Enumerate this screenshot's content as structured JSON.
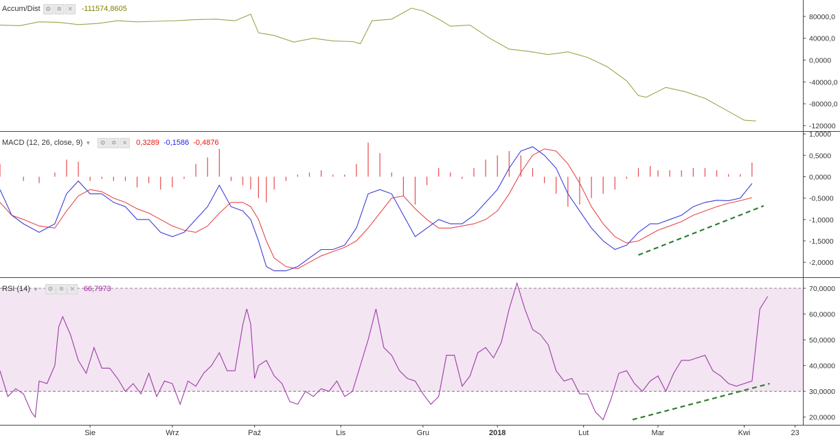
{
  "accum": {
    "name": "Accum/Dist",
    "value": "-111574,8605",
    "value_color": "#808000",
    "line_color": "#9aa44a",
    "yticks": [
      {
        "v": 80000,
        "label": "80000,0"
      },
      {
        "v": 40000,
        "label": "40000,0"
      },
      {
        "v": 0,
        "label": "0,0000"
      },
      {
        "v": -40000,
        "label": "-40000,0"
      },
      {
        "v": -80000,
        "label": "-80000,0"
      },
      {
        "v": -120000,
        "label": "-120000"
      }
    ]
  },
  "macd": {
    "name": "MACD (12, 26, close, 9)",
    "values": [
      {
        "text": "0,3289",
        "color": "#e8140c"
      },
      {
        "text": "-0,1586",
        "color": "#2020ee"
      },
      {
        "text": "-0,4876",
        "color": "#e8140c"
      }
    ],
    "macd_color": "#3b3bd9",
    "signal_color": "#e8464a",
    "hist_color": "#e8464a",
    "yticks": [
      {
        "v": 1,
        "label": "1,0000"
      },
      {
        "v": 0.5,
        "label": "0,5000"
      },
      {
        "v": 0,
        "label": "0,0000"
      },
      {
        "v": -0.5,
        "label": "-0,5000"
      },
      {
        "v": -1,
        "label": "-1,0000"
      },
      {
        "v": -1.5,
        "label": "-1,5000"
      },
      {
        "v": -2,
        "label": "-2,0000"
      }
    ]
  },
  "rsi": {
    "name": "RSI (14)",
    "value": "66,7973",
    "value_color": "#9b27a0",
    "line_color": "#9b3aa6",
    "band_color": "#f3e5f2",
    "band_upper": 70,
    "band_lower": 30,
    "yticks": [
      {
        "v": 70,
        "label": "70,0000"
      },
      {
        "v": 60,
        "label": "60,0000"
      },
      {
        "v": 50,
        "label": "50,0000"
      },
      {
        "v": 40,
        "label": "40,0000"
      },
      {
        "v": 30,
        "label": "30,0000"
      },
      {
        "v": 20,
        "label": "20,0000"
      }
    ]
  },
  "xaxis": {
    "labels": [
      {
        "t": 23,
        "label": "Sie",
        "bold": false
      },
      {
        "t": 44,
        "label": "Wrz",
        "bold": false
      },
      {
        "t": 65,
        "label": "Paź",
        "bold": false
      },
      {
        "t": 87,
        "label": "Lis",
        "bold": false
      },
      {
        "t": 108,
        "label": "Gru",
        "bold": false
      },
      {
        "t": 127,
        "label": "2018",
        "bold": true
      },
      {
        "t": 149,
        "label": "Lut",
        "bold": false
      },
      {
        "t": 168,
        "label": "Mar",
        "bold": false
      },
      {
        "t": 190,
        "label": "Kwi",
        "bold": false
      },
      {
        "t": 203,
        "label": "23",
        "bold": false
      }
    ]
  },
  "trendline_color": "#2e7d32",
  "chart_data": [
    {
      "type": "line",
      "title": "Accum/Dist",
      "x": [
        0,
        5,
        10,
        15,
        20,
        25,
        30,
        35,
        40,
        45,
        50,
        55,
        60,
        64,
        66,
        70,
        75,
        80,
        85,
        90,
        92,
        95,
        100,
        105,
        108,
        112,
        115,
        120,
        125,
        130,
        135,
        140,
        145,
        150,
        155,
        160,
        163,
        165,
        170,
        175,
        180,
        185,
        190,
        193
      ],
      "series": [
        {
          "values": [
            64000,
            63000,
            70000,
            69000,
            65000,
            67000,
            72000,
            70000,
            71000,
            72000,
            74000,
            75000,
            72000,
            84000,
            50000,
            45000,
            33000,
            40000,
            35000,
            34000,
            30000,
            72000,
            75000,
            95000,
            90000,
            75000,
            62000,
            64000,
            40000,
            20000,
            16000,
            10000,
            15000,
            5000,
            -12000,
            -38000,
            -65000,
            -68000,
            -50000,
            -58000,
            -70000,
            -90000,
            -110000,
            -111575
          ]
        }
      ],
      "ylim": [
        -130000,
        110000
      ],
      "yticks": [
        80000,
        40000,
        0,
        -40000,
        -80000,
        -120000
      ]
    },
    {
      "type": "line",
      "title": "MACD (12, 26, close, 9)",
      "x": [
        0,
        3,
        6,
        10,
        14,
        17,
        20,
        23,
        26,
        29,
        32,
        35,
        38,
        41,
        44,
        47,
        50,
        53,
        56,
        59,
        62,
        64,
        66,
        68,
        70,
        73,
        76,
        79,
        82,
        85,
        88,
        91,
        94,
        97,
        100,
        103,
        106,
        109,
        112,
        115,
        118,
        121,
        124,
        127,
        130,
        133,
        136,
        139,
        142,
        145,
        148,
        151,
        154,
        157,
        160,
        163,
        166,
        168,
        171,
        174,
        177,
        180,
        183,
        186,
        189,
        192
      ],
      "series": [
        {
          "name": "MACD",
          "values": [
            -0.3,
            -0.9,
            -1.1,
            -1.3,
            -1.1,
            -0.4,
            -0.1,
            -0.4,
            -0.4,
            -0.6,
            -0.7,
            -1.0,
            -1.0,
            -1.3,
            -1.4,
            -1.3,
            -1.0,
            -0.7,
            -0.2,
            -0.7,
            -0.8,
            -1.0,
            -1.5,
            -2.1,
            -2.2,
            -2.2,
            -2.1,
            -1.9,
            -1.7,
            -1.7,
            -1.6,
            -1.2,
            -0.4,
            -0.3,
            -0.4,
            -0.9,
            -1.4,
            -1.2,
            -1.0,
            -1.1,
            -1.1,
            -0.9,
            -0.6,
            -0.3,
            0.2,
            0.6,
            0.7,
            0.5,
            0.2,
            -0.4,
            -0.8,
            -1.2,
            -1.5,
            -1.7,
            -1.6,
            -1.3,
            -1.1,
            -1.1,
            -1.0,
            -0.9,
            -0.7,
            -0.6,
            -0.55,
            -0.56,
            -0.5,
            -0.16
          ]
        },
        {
          "name": "Signal",
          "values": [
            -0.6,
            -0.9,
            -1.0,
            -1.15,
            -1.2,
            -0.8,
            -0.45,
            -0.3,
            -0.35,
            -0.5,
            -0.6,
            -0.75,
            -0.85,
            -1.0,
            -1.15,
            -1.25,
            -1.3,
            -1.15,
            -0.85,
            -0.6,
            -0.6,
            -0.7,
            -1.0,
            -1.5,
            -1.9,
            -2.1,
            -2.15,
            -2.0,
            -1.85,
            -1.75,
            -1.65,
            -1.5,
            -1.2,
            -0.85,
            -0.5,
            -0.45,
            -0.75,
            -1.0,
            -1.2,
            -1.2,
            -1.15,
            -1.1,
            -1.0,
            -0.8,
            -0.4,
            0.1,
            0.5,
            0.65,
            0.6,
            0.3,
            -0.15,
            -0.7,
            -1.1,
            -1.4,
            -1.55,
            -1.5,
            -1.35,
            -1.25,
            -1.15,
            -1.05,
            -0.9,
            -0.8,
            -0.7,
            -0.62,
            -0.56,
            -0.49
          ]
        },
        {
          "name": "Histogram",
          "values": [
            0.3,
            0.0,
            -0.1,
            -0.15,
            0.1,
            0.4,
            0.35,
            -0.1,
            -0.05,
            -0.1,
            -0.1,
            -0.25,
            -0.15,
            -0.3,
            -0.25,
            -0.05,
            0.3,
            0.45,
            0.65,
            -0.1,
            -0.2,
            -0.3,
            -0.5,
            -0.6,
            -0.3,
            -0.1,
            0.05,
            0.1,
            0.15,
            0.05,
            0.05,
            0.3,
            0.8,
            0.55,
            0.1,
            -0.45,
            -0.65,
            -0.2,
            0.2,
            0.1,
            -0.05,
            0.2,
            0.4,
            0.5,
            0.6,
            0.5,
            0.2,
            -0.15,
            -0.4,
            -0.7,
            -0.65,
            -0.5,
            -0.4,
            -0.3,
            -0.05,
            0.2,
            0.25,
            0.15,
            0.15,
            0.15,
            0.2,
            0.2,
            0.15,
            0.06,
            0.06,
            0.33
          ]
        }
      ],
      "ylim": [
        -2.35,
        1.05
      ],
      "yticks": [
        1,
        0.5,
        0,
        -0.5,
        -1,
        -1.5,
        -2
      ]
    },
    {
      "type": "line",
      "title": "RSI (14)",
      "x": [
        0,
        2,
        4,
        6,
        8,
        9,
        10,
        12,
        14,
        15,
        16,
        18,
        20,
        22,
        24,
        26,
        28,
        30,
        32,
        34,
        36,
        38,
        40,
        42,
        44,
        46,
        48,
        50,
        52,
        54,
        56,
        58,
        60,
        62,
        63,
        64,
        65,
        66,
        68,
        70,
        72,
        74,
        76,
        78,
        80,
        82,
        84,
        86,
        88,
        90,
        92,
        94,
        96,
        98,
        100,
        102,
        104,
        106,
        108,
        110,
        112,
        114,
        116,
        118,
        120,
        122,
        124,
        126,
        128,
        130,
        132,
        134,
        136,
        138,
        140,
        142,
        144,
        146,
        148,
        150,
        152,
        154,
        156,
        158,
        160,
        162,
        164,
        166,
        168,
        170,
        172,
        174,
        176,
        178,
        180,
        182,
        184,
        186,
        188,
        190,
        192,
        194,
        196
      ],
      "series": [
        {
          "values": [
            38,
            28,
            31,
            29,
            22,
            20,
            34,
            33,
            40,
            55,
            59,
            52,
            42,
            37,
            47,
            39,
            39,
            35,
            30,
            33,
            29,
            37,
            28,
            34,
            33,
            25,
            34,
            32,
            37,
            40,
            45,
            38,
            38,
            56,
            62,
            56,
            35,
            40,
            42,
            36,
            33,
            26,
            25,
            30,
            28,
            31,
            30,
            34,
            28,
            30,
            40,
            50,
            62,
            47,
            44,
            38,
            35,
            34,
            29,
            25,
            28,
            44,
            44,
            32,
            36,
            45,
            47,
            43,
            49,
            62,
            72,
            62,
            54,
            52,
            48,
            38,
            34,
            35,
            29,
            29,
            22,
            19,
            27,
            37,
            38,
            33,
            30,
            34,
            36,
            30,
            37,
            42,
            42,
            43,
            44,
            38,
            36,
            33,
            32,
            33,
            34,
            62,
            66.8
          ]
        }
      ],
      "ylim": [
        17,
        74
      ],
      "yticks": [
        70,
        60,
        50,
        40,
        30,
        20
      ]
    }
  ]
}
